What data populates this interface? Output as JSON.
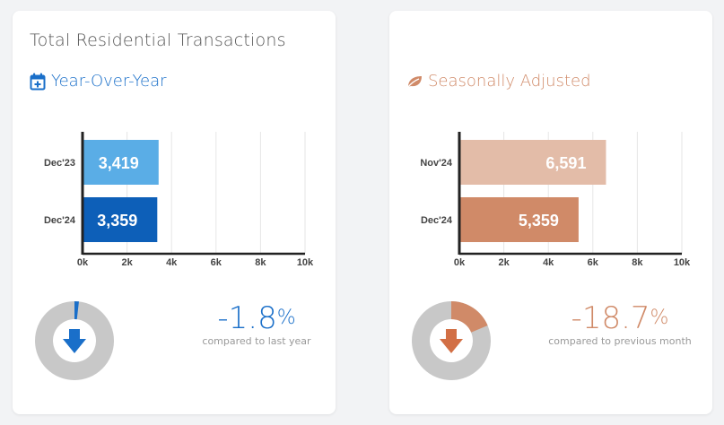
{
  "left": {
    "title": "Total Residential Transactions",
    "subtitle": "Year-Over-Year",
    "subtitle_icon": "calendar-plus-icon",
    "accent": "#1a6fc9",
    "change": {
      "value": "-1.8",
      "unit": "%",
      "label": "compared to last year"
    },
    "donut": {
      "fraction": 0.018,
      "fill": "#1a6fc9",
      "track": "#c8c8c8",
      "arrow": "#1a6fc9"
    }
  },
  "right": {
    "subtitle": "Seasonally Adjusted",
    "subtitle_icon": "leaf-icon",
    "accent": "#d08a68",
    "change": {
      "value": "-18.7",
      "unit": "%",
      "label": "compared to previous month"
    },
    "donut": {
      "fraction": 0.187,
      "fill": "#d08a68",
      "track": "#c8c8c8",
      "arrow": "#d26f45"
    }
  },
  "chart_data": [
    {
      "type": "bar",
      "orientation": "horizontal",
      "categories": [
        "Dec'23",
        "Dec'24"
      ],
      "values": [
        3419,
        3359
      ],
      "value_labels": [
        "3,419",
        "3,359"
      ],
      "colors": [
        "#5aade6",
        "#0d5fb8"
      ],
      "xlim": [
        0,
        10000
      ],
      "ticks": [
        0,
        2000,
        4000,
        6000,
        8000,
        10000
      ],
      "tick_labels": [
        "0k",
        "2k",
        "4k",
        "6k",
        "8k",
        "10k"
      ],
      "grid": true
    },
    {
      "type": "bar",
      "orientation": "horizontal",
      "categories": [
        "Nov'24",
        "Dec'24"
      ],
      "values": [
        6591,
        5359
      ],
      "value_labels": [
        "6,591",
        "5,359"
      ],
      "colors": [
        "#e3bca8",
        "#d08a68"
      ],
      "xlim": [
        0,
        10000
      ],
      "ticks": [
        0,
        2000,
        4000,
        6000,
        8000,
        10000
      ],
      "tick_labels": [
        "0k",
        "2k",
        "4k",
        "6k",
        "8k",
        "10k"
      ],
      "grid": true
    }
  ]
}
